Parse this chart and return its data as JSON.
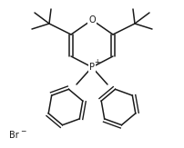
{
  "bg_color": "#ffffff",
  "line_color": "#1a1a1a",
  "line_width": 1.1,
  "font_size_atom": 7.0,
  "font_size_plus": 5.5,
  "font_size_br": 7.0,
  "figsize": [
    2.02,
    1.63
  ],
  "dpi": 100,
  "xlim": [
    0,
    202
  ],
  "ylim": [
    0,
    163
  ]
}
